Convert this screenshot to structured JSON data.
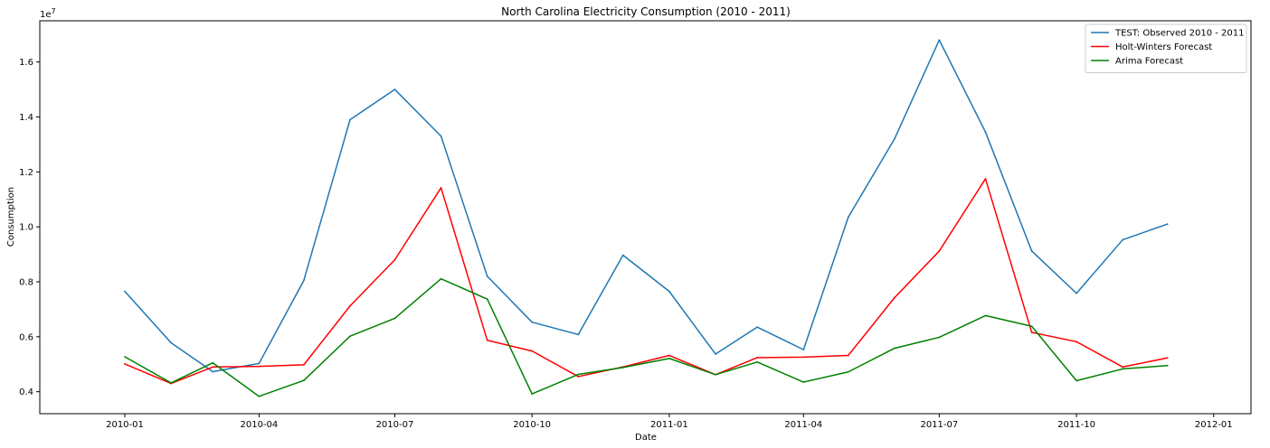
{
  "chart_data": {
    "type": "line",
    "title": "North Carolina Electricity Consumption (2010 - 2011)",
    "xlabel": "Date",
    "ylabel": "Consumption",
    "y_multiplier_label": "1e7",
    "x": [
      "2010-01",
      "2010-02",
      "2010-03",
      "2010-04",
      "2010-05",
      "2010-06",
      "2010-07",
      "2010-08",
      "2010-09",
      "2010-10",
      "2010-11",
      "2010-12",
      "2011-01",
      "2011-02",
      "2011-03",
      "2011-04",
      "2011-05",
      "2011-06",
      "2011-07",
      "2011-08",
      "2011-09",
      "2011-10",
      "2011-11",
      "2011-12"
    ],
    "x_ticks": [
      "2010-01",
      "2010-04",
      "2010-07",
      "2010-10",
      "2011-01",
      "2011-04",
      "2011-07",
      "2011-10",
      "2012-01"
    ],
    "y_ticks": [
      0.4,
      0.6,
      0.8,
      1.0,
      1.2,
      1.4,
      1.6
    ],
    "y_tick_labels": [
      "0.4",
      "0.6",
      "0.8",
      "1.0",
      "1.2",
      "1.4",
      "1.6"
    ],
    "ylim": [
      0.32,
      1.75
    ],
    "xlim": [
      "2009-11-05",
      "2012-01-26"
    ],
    "grid": false,
    "legend_position": "top-right",
    "series": [
      {
        "name": "TEST: Observed 2010 - 2011",
        "color": "#1f77b4",
        "values": [
          0.765,
          0.578,
          0.473,
          0.503,
          0.805,
          1.39,
          1.5,
          1.33,
          0.82,
          0.653,
          0.608,
          0.897,
          0.765,
          0.537,
          0.635,
          0.553,
          1.035,
          1.32,
          1.68,
          1.345,
          0.912,
          0.758,
          0.953,
          1.01
        ]
      },
      {
        "name": "Holt-Winters Forecast",
        "color": "#ff0000",
        "values": [
          0.501,
          0.43,
          0.49,
          0.492,
          0.498,
          0.712,
          0.88,
          1.142,
          0.587,
          0.548,
          0.455,
          0.49,
          0.532,
          0.462,
          0.524,
          0.526,
          0.532,
          0.742,
          0.912,
          1.175,
          0.616,
          0.582,
          0.49,
          0.523
        ]
      },
      {
        "name": "Arima Forecast",
        "color": "#008000",
        "values": [
          0.527,
          0.432,
          0.505,
          0.383,
          0.441,
          0.602,
          0.667,
          0.811,
          0.737,
          0.392,
          0.463,
          0.488,
          0.521,
          0.462,
          0.508,
          0.435,
          0.472,
          0.558,
          0.598,
          0.677,
          0.638,
          0.44,
          0.483,
          0.495
        ]
      }
    ]
  }
}
